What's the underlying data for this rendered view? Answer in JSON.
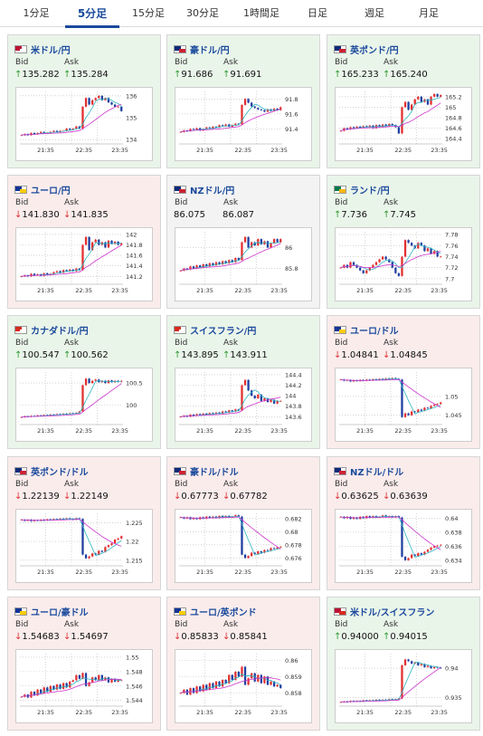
{
  "tabs": [
    "1分足",
    "5分足",
    "15分足",
    "30分足",
    "1時間足",
    "日足",
    "週足",
    "月足"
  ],
  "active_tab": 1,
  "bid_label": "Bid",
  "ask_label": "Ask",
  "colors": {
    "up_bg": "#eaf5ea",
    "down_bg": "#fbecec",
    "tab_active": "#1a4a9c",
    "bull": "#e23030",
    "bear": "#1f3fa0",
    "ma_short": "#2cb5c0",
    "ma_long": "#cc33cc"
  },
  "panels": [
    {
      "pair": "米ドル/円",
      "flag": [
        "#bb1133",
        "#ffffff"
      ],
      "trend": "up",
      "bid": "135.282",
      "ask": "135.284",
      "bid_dir": "up",
      "ask_dir": "up",
      "chart_data": {
        "type": "candlestick",
        "x_ticks": [
          "21:35",
          "22:35",
          "23:35"
        ],
        "y_ticks": [
          "136",
          "135",
          "134"
        ],
        "ylim": [
          133.8,
          136.2
        ],
        "close": [
          134.2,
          134.25,
          134.2,
          134.3,
          134.25,
          134.3,
          134.35,
          134.3,
          134.3,
          134.35,
          134.4,
          134.35,
          134.4,
          134.4,
          134.5,
          134.45,
          134.5,
          134.6,
          134.5,
          135.5,
          135.9,
          135.6,
          135.8,
          135.9,
          136.0,
          135.8,
          135.9,
          135.7,
          135.6,
          135.5,
          135.5,
          135.3
        ]
      }
    },
    {
      "pair": "豪ドル/円",
      "flag": [
        "#0a2a7a",
        "#cc2233"
      ],
      "trend": "up",
      "bid": "91.686",
      "ask": "91.691",
      "bid_dir": "up",
      "ask_dir": "up",
      "chart_data": {
        "type": "candlestick",
        "x_ticks": [
          "21:35",
          "22:35",
          "23:35"
        ],
        "y_ticks": [
          "91.8",
          "91.6",
          "91.4"
        ],
        "ylim": [
          91.2,
          91.9
        ],
        "close": [
          91.36,
          91.38,
          91.37,
          91.4,
          91.39,
          91.41,
          91.38,
          91.4,
          91.42,
          91.41,
          91.43,
          91.42,
          91.45,
          91.44,
          91.46,
          91.43,
          91.45,
          91.47,
          91.46,
          91.72,
          91.8,
          91.75,
          91.7,
          91.68,
          91.66,
          91.65,
          91.63,
          91.66,
          91.64,
          91.67,
          91.65,
          91.69
        ]
      }
    },
    {
      "pair": "英ポンド/円",
      "flag": [
        "#0a2a7a",
        "#cc2233"
      ],
      "trend": "up",
      "bid": "165.233",
      "ask": "165.240",
      "bid_dir": "up",
      "ask_dir": "up",
      "chart_data": {
        "type": "candlestick",
        "x_ticks": [
          "21:35",
          "22:35",
          "23:35"
        ],
        "y_ticks": [
          "165.2",
          "165",
          "164.8",
          "164.6",
          "164.4"
        ],
        "ylim": [
          164.3,
          165.3
        ],
        "close": [
          164.55,
          164.6,
          164.58,
          164.62,
          164.6,
          164.63,
          164.61,
          164.64,
          164.62,
          164.65,
          164.6,
          164.66,
          164.63,
          164.67,
          164.64,
          164.68,
          164.66,
          164.62,
          164.5,
          165.0,
          165.1,
          164.95,
          165.05,
          165.15,
          165.2,
          165.1,
          165.15,
          165.05,
          165.2,
          165.25,
          165.2,
          165.23
        ]
      }
    },
    {
      "pair": "ユーロ/円",
      "flag": [
        "#123399",
        "#ffcc00"
      ],
      "trend": "down",
      "bid": "141.830",
      "ask": "141.835",
      "bid_dir": "down",
      "ask_dir": "down",
      "chart_data": {
        "type": "candlestick",
        "x_ticks": [
          "21:35",
          "22:35",
          "23:35"
        ],
        "y_ticks": [
          "142",
          "141.8",
          "141.6",
          "141.4",
          "141.2"
        ],
        "ylim": [
          141.05,
          142.05
        ],
        "close": [
          141.2,
          141.22,
          141.2,
          141.25,
          141.22,
          141.24,
          141.21,
          141.26,
          141.23,
          141.25,
          141.28,
          141.3,
          141.27,
          141.32,
          141.3,
          141.33,
          141.3,
          141.35,
          141.32,
          141.8,
          141.95,
          141.7,
          141.85,
          141.9,
          141.8,
          141.85,
          141.75,
          141.88,
          141.82,
          141.86,
          141.8,
          141.83
        ]
      }
    },
    {
      "pair": "NZドル/円",
      "flag": [
        "#0a2a7a",
        "#cc2233"
      ],
      "trend": "flat",
      "bid": "86.075",
      "ask": "86.087",
      "bid_dir": "none",
      "ask_dir": "none",
      "chart_data": {
        "type": "candlestick",
        "x_ticks": [
          "21:35",
          "22:35",
          "23:35"
        ],
        "y_ticks": [
          "86",
          "85.8"
        ],
        "ylim": [
          85.65,
          86.15
        ],
        "close": [
          85.78,
          85.8,
          85.79,
          85.82,
          85.8,
          85.83,
          85.81,
          85.84,
          85.82,
          85.85,
          85.83,
          85.86,
          85.84,
          85.87,
          85.85,
          85.88,
          85.86,
          85.9,
          85.88,
          86.05,
          86.1,
          86.0,
          86.05,
          86.02,
          86.08,
          86.03,
          86.06,
          86.0,
          86.04,
          86.08,
          86.05,
          86.08
        ]
      }
    },
    {
      "pair": "ランド/円",
      "flag": [
        "#007a4d",
        "#ffb612"
      ],
      "trend": "up",
      "bid": "7.736",
      "ask": "7.745",
      "bid_dir": "up",
      "ask_dir": "up",
      "chart_data": {
        "type": "candlestick",
        "x_ticks": [
          "21:35",
          "22:35",
          "23:35"
        ],
        "y_ticks": [
          "7.78",
          "7.76",
          "7.74",
          "7.72",
          "7.7"
        ],
        "ylim": [
          7.69,
          7.785
        ],
        "close": [
          7.72,
          7.725,
          7.72,
          7.73,
          7.725,
          7.72,
          7.715,
          7.71,
          7.715,
          7.72,
          7.725,
          7.73,
          7.735,
          7.74,
          7.735,
          7.73,
          7.72,
          7.71,
          7.705,
          7.74,
          7.77,
          7.765,
          7.76,
          7.755,
          7.765,
          7.76,
          7.75,
          7.755,
          7.745,
          7.75,
          7.74,
          7.74
        ]
      }
    },
    {
      "pair": "カナダドル/円",
      "flag": [
        "#d52b1e",
        "#ffffff"
      ],
      "trend": "up",
      "bid": "100.547",
      "ask": "100.562",
      "bid_dir": "up",
      "ask_dir": "up",
      "chart_data": {
        "type": "candlestick",
        "x_ticks": [
          "21:35",
          "22:35",
          "23:35"
        ],
        "y_ticks": [
          "100.5",
          "100"
        ],
        "ylim": [
          99.55,
          100.75
        ],
        "close": [
          99.72,
          99.74,
          99.73,
          99.75,
          99.74,
          99.76,
          99.75,
          99.77,
          99.76,
          99.78,
          99.77,
          99.79,
          99.78,
          99.8,
          99.79,
          99.81,
          99.8,
          99.82,
          99.85,
          100.45,
          100.6,
          100.5,
          100.55,
          100.58,
          100.52,
          100.55,
          100.5,
          100.56,
          100.52,
          100.55,
          100.53,
          100.55
        ]
      }
    },
    {
      "pair": "スイスフラン/円",
      "flag": [
        "#d52b1e",
        "#ffffff"
      ],
      "trend": "up",
      "bid": "143.895",
      "ask": "143.911",
      "bid_dir": "up",
      "ask_dir": "up",
      "chart_data": {
        "type": "candlestick",
        "x_ticks": [
          "21:35",
          "22:35",
          "23:35"
        ],
        "y_ticks": [
          "144.4",
          "144.2",
          "144",
          "143.8",
          "143.6"
        ],
        "ylim": [
          143.45,
          144.45
        ],
        "close": [
          143.6,
          143.62,
          143.6,
          143.64,
          143.62,
          143.65,
          143.63,
          143.66,
          143.64,
          143.67,
          143.65,
          143.68,
          143.66,
          143.7,
          143.68,
          143.72,
          143.7,
          143.74,
          143.72,
          144.2,
          144.3,
          144.1,
          144.0,
          143.95,
          144.02,
          143.9,
          143.95,
          143.88,
          143.92,
          143.85,
          143.9,
          143.9
        ]
      }
    },
    {
      "pair": "ユーロ/ドル",
      "flag": [
        "#123399",
        "#ffcc00"
      ],
      "trend": "down",
      "bid": "1.04841",
      "ask": "1.04845",
      "bid_dir": "down",
      "ask_dir": "down",
      "chart_data": {
        "type": "candlestick",
        "x_ticks": [
          "21:35",
          "22:35",
          "23:35"
        ],
        "y_ticks": [
          "1.05",
          "1.045"
        ],
        "ylim": [
          1.0425,
          1.0565
        ],
        "close": [
          1.0545,
          1.0542,
          1.0544,
          1.054,
          1.0543,
          1.0541,
          1.0544,
          1.0542,
          1.0545,
          1.0543,
          1.0546,
          1.0544,
          1.0547,
          1.0545,
          1.0548,
          1.0546,
          1.0549,
          1.0547,
          1.0545,
          1.0445,
          1.0455,
          1.045,
          1.046,
          1.0458,
          1.0465,
          1.0462,
          1.047,
          1.0468,
          1.0475,
          1.0478,
          1.048,
          1.0484
        ]
      }
    },
    {
      "pair": "英ポンド/ドル",
      "flag": [
        "#0a2a7a",
        "#cc2233"
      ],
      "trend": "down",
      "bid": "1.22139",
      "ask": "1.22149",
      "bid_dir": "down",
      "ask_dir": "down",
      "chart_data": {
        "type": "candlestick",
        "x_ticks": [
          "21:35",
          "22:35",
          "23:35"
        ],
        "y_ticks": [
          "1.225",
          "1.22",
          "1.215"
        ],
        "ylim": [
          1.2135,
          1.2275
        ],
        "close": [
          1.2258,
          1.2255,
          1.2258,
          1.2254,
          1.2257,
          1.2255,
          1.2258,
          1.2256,
          1.2259,
          1.2257,
          1.226,
          1.2258,
          1.2261,
          1.2259,
          1.2262,
          1.226,
          1.2258,
          1.2262,
          1.226,
          1.2165,
          1.2155,
          1.216,
          1.2168,
          1.2165,
          1.2175,
          1.2172,
          1.2185,
          1.219,
          1.2195,
          1.2205,
          1.2208,
          1.2214
        ]
      }
    },
    {
      "pair": "豪ドル/ドル",
      "flag": [
        "#0a2a7a",
        "#cc2233"
      ],
      "trend": "down",
      "bid": "0.67773",
      "ask": "0.67782",
      "bid_dir": "down",
      "ask_dir": "down",
      "chart_data": {
        "type": "candlestick",
        "x_ticks": [
          "21:35",
          "22:35",
          "23:35"
        ],
        "y_ticks": [
          "0.682",
          "0.68",
          "0.678",
          "0.676"
        ],
        "ylim": [
          0.6748,
          0.6828
        ],
        "close": [
          0.6822,
          0.682,
          0.6822,
          0.6819,
          0.6821,
          0.6819,
          0.6822,
          0.682,
          0.6823,
          0.6821,
          0.6823,
          0.6821,
          0.6824,
          0.6822,
          0.6824,
          0.6822,
          0.6823,
          0.6825,
          0.6823,
          0.6765,
          0.676,
          0.6763,
          0.6768,
          0.6766,
          0.677,
          0.6768,
          0.6772,
          0.6771,
          0.6775,
          0.6774,
          0.6776,
          0.6777
        ]
      }
    },
    {
      "pair": "NZドル/ドル",
      "flag": [
        "#0a2a7a",
        "#cc2233"
      ],
      "trend": "down",
      "bid": "0.63625",
      "ask": "0.63639",
      "bid_dir": "down",
      "ask_dir": "down",
      "chart_data": {
        "type": "candlestick",
        "x_ticks": [
          "21:35",
          "22:35",
          "23:35"
        ],
        "y_ticks": [
          "0.64",
          "0.638",
          "0.636",
          "0.634"
        ],
        "ylim": [
          0.6332,
          0.6407
        ],
        "close": [
          0.6402,
          0.64,
          0.6402,
          0.6399,
          0.6401,
          0.6399,
          0.6402,
          0.64,
          0.6403,
          0.6401,
          0.6403,
          0.6401,
          0.6402,
          0.6404,
          0.6402,
          0.6403,
          0.6401,
          0.6403,
          0.6401,
          0.6345,
          0.634,
          0.6343,
          0.6348,
          0.6346,
          0.635,
          0.6348,
          0.6352,
          0.6355,
          0.6358,
          0.636,
          0.6361,
          0.6362
        ]
      }
    },
    {
      "pair": "ユーロ/豪ドル",
      "flag": [
        "#123399",
        "#ffcc00"
      ],
      "trend": "down",
      "bid": "1.54683",
      "ask": "1.54697",
      "bid_dir": "down",
      "ask_dir": "down",
      "chart_data": {
        "type": "candlestick",
        "x_ticks": [
          "21:35",
          "22:35",
          "23:35"
        ],
        "y_ticks": [
          "1.55",
          "1.548",
          "1.546",
          "1.544"
        ],
        "ylim": [
          1.5432,
          1.5505
        ],
        "close": [
          1.5445,
          1.5448,
          1.5444,
          1.5452,
          1.5447,
          1.5455,
          1.545,
          1.5458,
          1.5452,
          1.546,
          1.5455,
          1.5462,
          1.5456,
          1.5464,
          1.5458,
          1.5466,
          1.5468,
          1.5475,
          1.547,
          1.5478,
          1.546,
          1.5465,
          1.5472,
          1.5468,
          1.5475,
          1.5468,
          1.5472,
          1.5465,
          1.547,
          1.5466,
          1.5468,
          1.5468
        ]
      }
    },
    {
      "pair": "ユーロ/英ポンド",
      "flag": [
        "#123399",
        "#ffcc00"
      ],
      "trend": "down",
      "bid": "0.85833",
      "ask": "0.85841",
      "bid_dir": "down",
      "ask_dir": "down",
      "chart_data": {
        "type": "candlestick",
        "x_ticks": [
          "21:35",
          "22:35",
          "23:35"
        ],
        "y_ticks": [
          "0.86",
          "0.859",
          "0.858"
        ],
        "ylim": [
          0.8572,
          0.8604
        ],
        "close": [
          0.858,
          0.8582,
          0.8579,
          0.8583,
          0.858,
          0.8584,
          0.8581,
          0.8585,
          0.8582,
          0.8586,
          0.8583,
          0.8587,
          0.8584,
          0.8588,
          0.8586,
          0.8591,
          0.8588,
          0.8593,
          0.859,
          0.8596,
          0.8585,
          0.8589,
          0.8592,
          0.8587,
          0.8591,
          0.8586,
          0.859,
          0.8585,
          0.8587,
          0.8584,
          0.8585,
          0.8583
        ]
      }
    },
    {
      "pair": "米ドル/スイスフラン",
      "flag": [
        "#bb1133",
        "#d52b1e"
      ],
      "trend": "up",
      "bid": "0.94000",
      "ask": "0.94015",
      "bid_dir": "up",
      "ask_dir": "up",
      "chart_data": {
        "type": "candlestick",
        "x_ticks": [
          "21:35",
          "22:35",
          "23:35"
        ],
        "y_ticks": [
          "0.94",
          "0.935"
        ],
        "ylim": [
          0.9335,
          0.9425
        ],
        "close": [
          0.9342,
          0.9343,
          0.9342,
          0.9344,
          0.9343,
          0.9344,
          0.9343,
          0.9345,
          0.9344,
          0.9345,
          0.9344,
          0.9346,
          0.9345,
          0.9346,
          0.9345,
          0.9347,
          0.9346,
          0.9347,
          0.9348,
          0.9405,
          0.9415,
          0.9412,
          0.9408,
          0.941,
          0.9405,
          0.9407,
          0.9402,
          0.9404,
          0.94,
          0.9402,
          0.9401,
          0.94
        ]
      }
    }
  ]
}
